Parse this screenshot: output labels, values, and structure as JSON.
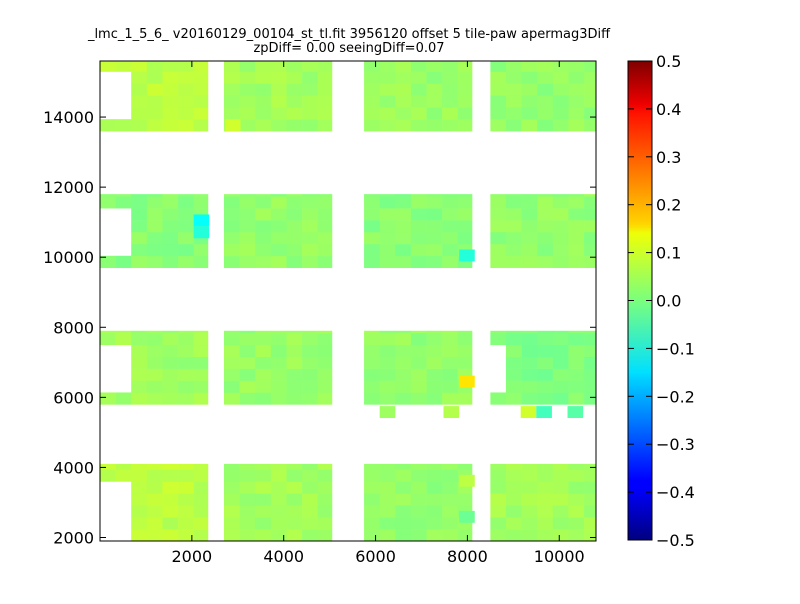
{
  "chart_data": {
    "type": "heatmap",
    "title_lines": [
      "_lmc_1_5_6_ v20160129_00104_st_tl.fit 3956120 offset 5 tile-paw apermag3Diff",
      "zpDiff= 0.00 seeingDiff=0.07"
    ],
    "xlabel": "",
    "ylabel": "",
    "xlim": [
      0,
      10800
    ],
    "ylim": [
      1900,
      15600
    ],
    "x_ticks": [
      2000,
      4000,
      6000,
      8000,
      10000
    ],
    "x_tick_labels": [
      "2000",
      "4000",
      "6000",
      "8000",
      "10000"
    ],
    "y_ticks": [
      2000,
      4000,
      6000,
      8000,
      10000,
      12000,
      14000
    ],
    "y_tick_labels": [
      "2000",
      "4000",
      "6000",
      "8000",
      "10000",
      "12000",
      "14000"
    ],
    "colorbar": {
      "colormap": "jet",
      "range": [
        -0.5,
        0.5
      ],
      "ticks": [
        0.5,
        0.4,
        0.3,
        0.2,
        0.1,
        0.0,
        -0.1,
        -0.2,
        -0.3,
        -0.4,
        -0.5
      ],
      "tick_labels": [
        "0.5",
        "0.4",
        "0.3",
        "0.2",
        "0.1",
        "0.0",
        "−0.1",
        "−0.2",
        "−0.3",
        "−0.4",
        "−0.5"
      ]
    },
    "grid": false,
    "cell_size": [
      340,
      340
    ],
    "detectors": [
      {
        "x0": 0,
        "x1": 2350,
        "y0": 1900,
        "y1": 4100,
        "mean": 0.06
      },
      {
        "x0": 2700,
        "x1": 5050,
        "y0": 1900,
        "y1": 4100,
        "mean": 0.035
      },
      {
        "x0": 5750,
        "x1": 8100,
        "y0": 1900,
        "y1": 4100,
        "mean": 0.02
      },
      {
        "x0": 8500,
        "x1": 10800,
        "y0": 1900,
        "y1": 4100,
        "mean": 0.035
      },
      {
        "x0": 0,
        "x1": 2350,
        "y0": 5800,
        "y1": 7900,
        "mean": 0.03
      },
      {
        "x0": 2700,
        "x1": 5050,
        "y0": 5800,
        "y1": 7900,
        "mean": 0.025
      },
      {
        "x0": 5750,
        "x1": 8100,
        "y0": 5800,
        "y1": 7900,
        "mean": 0.02
      },
      {
        "x0": 8500,
        "x1": 10800,
        "y0": 5800,
        "y1": 7900,
        "mean": 0.0
      },
      {
        "x0": 0,
        "x1": 2350,
        "y0": 9700,
        "y1": 11800,
        "mean": 0.01
      },
      {
        "x0": 2700,
        "x1": 5050,
        "y0": 9700,
        "y1": 11800,
        "mean": 0.02
      },
      {
        "x0": 5750,
        "x1": 8100,
        "y0": 9700,
        "y1": 11800,
        "mean": 0.01
      },
      {
        "x0": 8500,
        "x1": 10800,
        "y0": 9700,
        "y1": 11800,
        "mean": 0.02
      },
      {
        "x0": 0,
        "x1": 2350,
        "y0": 13600,
        "y1": 15600,
        "mean": 0.06
      },
      {
        "x0": 2700,
        "x1": 5050,
        "y0": 13600,
        "y1": 15600,
        "mean": 0.035
      },
      {
        "x0": 5750,
        "x1": 8100,
        "y0": 13600,
        "y1": 15600,
        "mean": 0.025
      },
      {
        "x0": 8500,
        "x1": 10800,
        "y0": 13600,
        "y1": 15600,
        "mean": 0.02
      }
    ],
    "missing_regions": [
      {
        "x0": 0,
        "x1": 680,
        "y0": 1900,
        "y1": 3700
      },
      {
        "x0": 0,
        "x1": 680,
        "y0": 6100,
        "y1": 7500
      },
      {
        "x0": 0,
        "x1": 680,
        "y0": 10050,
        "y1": 11450
      },
      {
        "x0": 0,
        "x1": 680,
        "y0": 13960,
        "y1": 15200
      },
      {
        "x0": 8500,
        "x1": 8850,
        "y0": 6100,
        "y1": 7500
      }
    ],
    "highlight_cells": [
      {
        "x": 2040,
        "y": 10880,
        "value": -0.12
      },
      {
        "x": 2040,
        "y": 10540,
        "value": -0.09
      },
      {
        "x": 7820,
        "y": 9880,
        "value": -0.09
      },
      {
        "x": 7820,
        "y": 6280,
        "value": 0.15
      },
      {
        "x": 2720,
        "y": 13600,
        "value": 0.08
      },
      {
        "x": 9160,
        "y": 5410,
        "value": 0.08
      },
      {
        "x": 9500,
        "y": 5410,
        "value": -0.06
      },
      {
        "x": 6090,
        "y": 5410,
        "value": 0.03
      },
      {
        "x": 7480,
        "y": 5410,
        "value": 0.05
      },
      {
        "x": 10180,
        "y": 5410,
        "value": -0.04
      },
      {
        "x": 7820,
        "y": 3450,
        "value": 0.06
      },
      {
        "x": 7820,
        "y": 2420,
        "value": -0.02
      }
    ]
  }
}
